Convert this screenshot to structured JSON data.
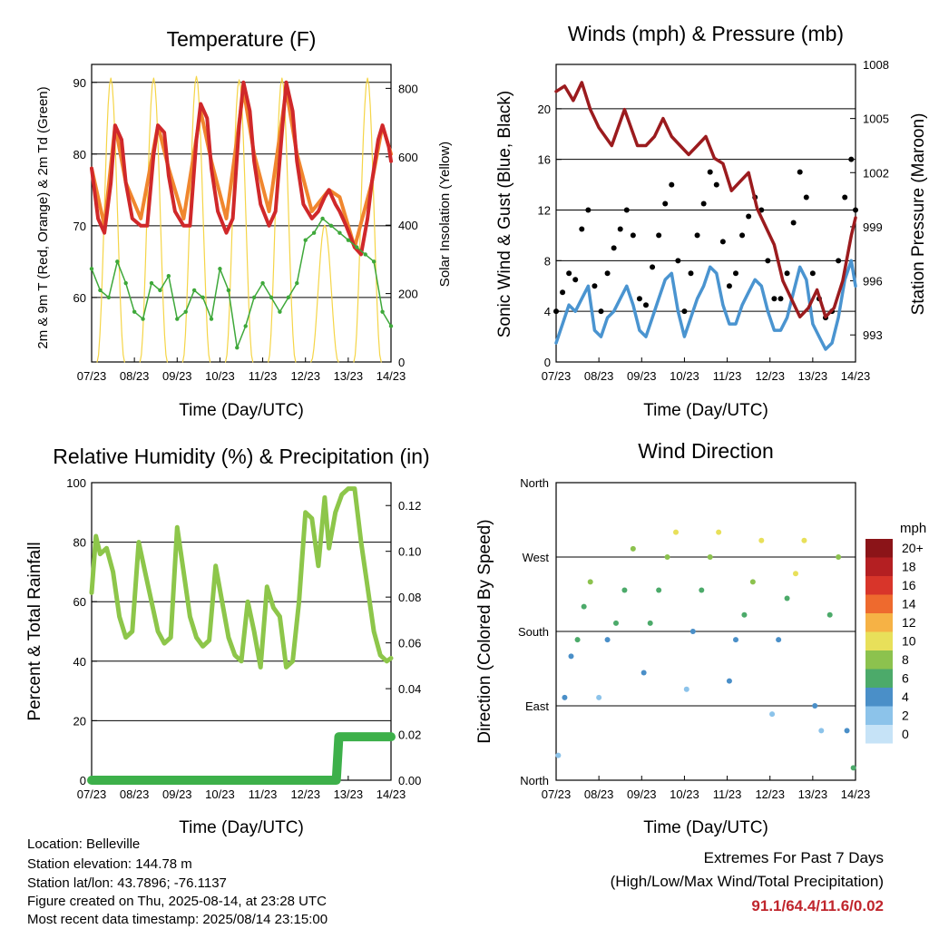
{
  "x_ticks": [
    "07/23",
    "08/23",
    "09/23",
    "10/23",
    "11/23",
    "12/23",
    "13/23",
    "14/23"
  ],
  "x_label": "Time (Day/UTC)",
  "temperature_panel": {
    "title": "Temperature (F)",
    "left_label": "2m & 9m T (Red, Orange) & 2m Td (Green)",
    "right_label": "Solar Insolation (Yellow)",
    "left_ticks": [
      "60",
      "70",
      "80",
      "90"
    ],
    "right_ticks": [
      "0",
      "200",
      "400",
      "600",
      "800"
    ]
  },
  "winds_panel": {
    "title": "Winds (mph) & Pressure (mb)",
    "left_label": "Sonic Wind & Gust (Blue, Black)",
    "right_label": "Station Pressure (Maroon)",
    "left_ticks": [
      "0",
      "4",
      "8",
      "12",
      "16",
      "20"
    ],
    "right_ticks": [
      "993",
      "996",
      "999",
      "1002",
      "1005",
      "1008"
    ]
  },
  "rh_panel": {
    "title": "Relative Humidity (%) & Precipitation (in)",
    "left_label": "Percent & Total Rainfall",
    "left_ticks": [
      "0",
      "20",
      "40",
      "60",
      "80",
      "100"
    ],
    "right_ticks": [
      "0.00",
      "0.02",
      "0.04",
      "0.06",
      "0.08",
      "0.10",
      "0.12"
    ]
  },
  "direction_panel": {
    "title": "Wind Direction",
    "left_label": "Direction (Colored By Speed)",
    "left_ticks": [
      "North",
      "East",
      "South",
      "West",
      "North"
    ],
    "legend_title": "mph",
    "legend_labels": [
      "0",
      "2",
      "4",
      "6",
      "8",
      "10",
      "12",
      "14",
      "16",
      "18",
      "20+"
    ],
    "legend_colors": [
      "#c6e3f7",
      "#8cc3ea",
      "#4a8fc8",
      "#4caa6a",
      "#8cc24e",
      "#e8e05a",
      "#f6b245",
      "#ee6a2e",
      "#d8352a",
      "#b41f22",
      "#8b1418"
    ]
  },
  "info": {
    "location": "Location: Belleville",
    "elevation": "Station elevation: 144.78 m",
    "latlon": "Station lat/lon: 43.7896; -76.1137",
    "created": "Figure created on Thu, 2025-08-14, at 23:28 UTC",
    "recent": "Most recent data timestamp: 2025/08/14 23:15:00"
  },
  "extremes": {
    "line1": "Extremes For Past 7 Days",
    "line2": "(High/Low/Max Wind/Total Precipitation)",
    "values": "91.1/64.4/11.6/0.02"
  },
  "chart_data": [
    {
      "type": "line",
      "title": "Temperature (F)",
      "xlabel": "Time (Day/UTC)",
      "ylabel": "2m & 9m T (Red, Orange) & 2m Td (Green)",
      "y2label": "Solar Insolation (Yellow)",
      "x_days": [
        7,
        14
      ],
      "ylim": [
        51,
        92.5
      ],
      "y2lim": [
        0,
        870
      ],
      "series": [
        {
          "name": "2m T",
          "color": "#d0282a",
          "x": [
            7.0,
            7.15,
            7.3,
            7.45,
            7.55,
            7.7,
            7.8,
            7.95,
            8.15,
            8.3,
            8.45,
            8.55,
            8.7,
            8.8,
            8.95,
            9.15,
            9.3,
            9.45,
            9.55,
            9.7,
            9.8,
            9.95,
            10.15,
            10.3,
            10.45,
            10.55,
            10.7,
            10.8,
            10.95,
            11.15,
            11.3,
            11.45,
            11.55,
            11.7,
            11.8,
            11.95,
            12.15,
            12.3,
            12.45,
            12.55,
            12.7,
            12.8,
            12.95,
            13.15,
            13.3,
            13.45,
            13.55,
            13.7,
            13.8,
            13.95,
            14.0
          ],
          "y": [
            78,
            71,
            69,
            76,
            84,
            82,
            76,
            71,
            70,
            70,
            80,
            84,
            83,
            77,
            72,
            70,
            70,
            82,
            87,
            85,
            78,
            72,
            69,
            71,
            84,
            90,
            86,
            79,
            73,
            70,
            72,
            83,
            90,
            86,
            79,
            73,
            71,
            72,
            74,
            75,
            73,
            72,
            70,
            67,
            66,
            71,
            76,
            82,
            84,
            81,
            79
          ]
        },
        {
          "name": "9m T",
          "color": "#f0862e",
          "x": [
            7.0,
            7.3,
            7.55,
            7.8,
            8.15,
            8.55,
            8.8,
            9.15,
            9.55,
            9.8,
            10.15,
            10.55,
            10.8,
            11.15,
            11.55,
            11.8,
            12.15,
            12.55,
            12.8,
            13.15,
            13.55,
            13.8,
            14.0
          ],
          "y": [
            78,
            70,
            84,
            76,
            71,
            84,
            78,
            71,
            86,
            79,
            71,
            89,
            80,
            72,
            89,
            80,
            72,
            75,
            74,
            67,
            76,
            84,
            80
          ]
        },
        {
          "name": "2m Td",
          "color": "#3ea83a",
          "x": [
            7.0,
            7.2,
            7.4,
            7.6,
            7.8,
            8.0,
            8.2,
            8.4,
            8.6,
            8.8,
            9.0,
            9.2,
            9.4,
            9.6,
            9.8,
            10.0,
            10.2,
            10.4,
            10.6,
            10.8,
            11.0,
            11.2,
            11.4,
            11.6,
            11.8,
            12.0,
            12.2,
            12.4,
            12.6,
            12.8,
            13.0,
            13.2,
            13.4,
            13.6,
            13.8,
            14.0
          ],
          "y": [
            64,
            61,
            60,
            65,
            62,
            58,
            57,
            62,
            61,
            63,
            57,
            58,
            61,
            60,
            57,
            64,
            61,
            53,
            56,
            60,
            62,
            60,
            58,
            60,
            62,
            68,
            69,
            71,
            70,
            69,
            68,
            67,
            66,
            65,
            58,
            56
          ]
        },
        {
          "name": "Solar Insolation",
          "color": "#f5d547",
          "axis": "right",
          "peaks_x": [
            7.45,
            8.45,
            9.45,
            10.45,
            11.45,
            12.45,
            13.45
          ],
          "peaks_y": [
            830,
            830,
            835,
            825,
            830,
            400,
            830
          ]
        }
      ]
    },
    {
      "type": "line",
      "title": "Winds (mph) & Pressure (mb)",
      "xlabel": "Time (Day/UTC)",
      "ylabel": "Sonic Wind & Gust (Blue, Black)",
      "y2label": "Station Pressure (Maroon)",
      "x_days": [
        7,
        14
      ],
      "ylim": [
        0,
        23.5
      ],
      "y2lim": [
        991.5,
        1008.0
      ],
      "series": [
        {
          "name": "Sonic Wind",
          "color": "#4a94d0",
          "x": [
            7.0,
            7.15,
            7.3,
            7.45,
            7.6,
            7.75,
            7.9,
            8.05,
            8.2,
            8.35,
            8.5,
            8.65,
            8.8,
            8.95,
            9.1,
            9.25,
            9.4,
            9.55,
            9.7,
            9.85,
            10.0,
            10.15,
            10.3,
            10.45,
            10.6,
            10.75,
            10.9,
            11.05,
            11.2,
            11.35,
            11.5,
            11.65,
            11.8,
            11.95,
            12.1,
            12.25,
            12.4,
            12.55,
            12.7,
            12.85,
            13.0,
            13.15,
            13.3,
            13.45,
            13.6,
            13.75,
            13.9,
            14.0
          ],
          "y": [
            1.5,
            3.0,
            4.5,
            4.0,
            5.0,
            6.0,
            2.5,
            2.0,
            3.5,
            4.0,
            5.0,
            6.0,
            4.5,
            2.5,
            2.0,
            3.5,
            5.0,
            6.5,
            7.0,
            4.0,
            2.0,
            3.5,
            5.0,
            6.0,
            7.5,
            7.0,
            4.5,
            3.0,
            3.0,
            4.5,
            5.5,
            6.5,
            6.0,
            4.0,
            2.5,
            2.5,
            3.5,
            5.5,
            7.5,
            6.5,
            3.0,
            2.0,
            1.0,
            1.5,
            3.5,
            6.5,
            8.0,
            6.0
          ]
        },
        {
          "name": "Gust",
          "color": "#000000",
          "x": [
            7.0,
            7.15,
            7.3,
            7.45,
            7.6,
            7.75,
            7.9,
            8.05,
            8.2,
            8.35,
            8.5,
            8.65,
            8.8,
            8.95,
            9.1,
            9.25,
            9.4,
            9.55,
            9.7,
            9.85,
            10.0,
            10.15,
            10.3,
            10.45,
            10.6,
            10.75,
            10.9,
            11.05,
            11.2,
            11.35,
            11.5,
            11.65,
            11.8,
            11.95,
            12.1,
            12.25,
            12.4,
            12.55,
            12.7,
            12.85,
            13.0,
            13.15,
            13.3,
            13.45,
            13.6,
            13.75,
            13.9,
            14.0
          ],
          "y": [
            4.0,
            5.5,
            7.0,
            6.5,
            10.5,
            12.0,
            6.0,
            4.0,
            7.0,
            9.0,
            10.5,
            12.0,
            10.0,
            5.0,
            4.5,
            7.5,
            10.0,
            12.5,
            14.0,
            8.0,
            4.0,
            7.0,
            10.0,
            12.5,
            15.0,
            14.0,
            9.5,
            6.0,
            7.0,
            10.0,
            11.5,
            13.0,
            12.0,
            8.0,
            5.0,
            5.0,
            7.0,
            11.0,
            15.0,
            13.0,
            7.0,
            5.0,
            3.5,
            4.0,
            8.0,
            13.0,
            16.0,
            12.0
          ]
        },
        {
          "name": "Station Pressure",
          "color": "#9b1b1e",
          "axis": "right",
          "x": [
            7.0,
            7.2,
            7.4,
            7.6,
            7.8,
            8.0,
            8.3,
            8.6,
            8.9,
            9.1,
            9.3,
            9.5,
            9.7,
            9.9,
            10.1,
            10.3,
            10.5,
            10.7,
            10.9,
            11.1,
            11.3,
            11.5,
            11.7,
            11.9,
            12.1,
            12.3,
            12.5,
            12.7,
            12.9,
            13.1,
            13.3,
            13.5,
            13.7,
            13.9,
            14.0
          ],
          "y": [
            1006.5,
            1006.8,
            1006.0,
            1007.0,
            1005.5,
            1004.5,
            1003.5,
            1005.5,
            1003.5,
            1003.5,
            1004.0,
            1005.0,
            1004.0,
            1003.5,
            1003.0,
            1003.5,
            1004.0,
            1002.8,
            1002.5,
            1001.0,
            1001.5,
            1002.0,
            1000.0,
            999.0,
            998.0,
            996.0,
            995.0,
            994.0,
            994.5,
            995.5,
            994.0,
            994.5,
            996.0,
            998.5,
            999.5
          ]
        }
      ]
    },
    {
      "type": "line",
      "title": "Relative Humidity (%) & Precipitation (in)",
      "xlabel": "Time (Day/UTC)",
      "ylabel": "Percent & Total Rainfall",
      "x_days": [
        7,
        14
      ],
      "ylim": [
        0,
        100
      ],
      "y2lim": [
        0,
        0.13
      ],
      "series": [
        {
          "name": "Relative Humidity",
          "color": "#8dc64a",
          "x": [
            7.0,
            7.1,
            7.2,
            7.35,
            7.5,
            7.65,
            7.8,
            7.95,
            8.1,
            8.25,
            8.4,
            8.55,
            8.7,
            8.85,
            9.0,
            9.15,
            9.3,
            9.45,
            9.6,
            9.75,
            9.9,
            10.05,
            10.2,
            10.35,
            10.5,
            10.65,
            10.8,
            10.95,
            11.1,
            11.25,
            11.4,
            11.55,
            11.7,
            11.85,
            12.0,
            12.15,
            12.3,
            12.45,
            12.55,
            12.7,
            12.85,
            13.0,
            13.15,
            13.3,
            13.45,
            13.6,
            13.75,
            13.9,
            14.0
          ],
          "y": [
            63,
            82,
            76,
            78,
            70,
            55,
            48,
            50,
            80,
            70,
            60,
            50,
            46,
            48,
            85,
            70,
            55,
            48,
            45,
            47,
            72,
            60,
            48,
            42,
            40,
            60,
            50,
            38,
            65,
            58,
            55,
            38,
            40,
            60,
            90,
            88,
            72,
            95,
            78,
            90,
            96,
            98,
            98,
            80,
            65,
            50,
            42,
            40,
            41
          ]
        },
        {
          "name": "Total Rainfall",
          "color": "#3db04a",
          "axis": "right",
          "x": [
            7.0,
            12.72,
            12.78,
            14.0
          ],
          "y": [
            0.0,
            0.0,
            0.019,
            0.019
          ]
        }
      ]
    },
    {
      "type": "scatter",
      "title": "Wind Direction",
      "xlabel": "Time (Day/UTC)",
      "ylabel": "Direction (Colored By Speed)",
      "x_days": [
        7,
        14
      ],
      "ylim": [
        0,
        360
      ],
      "x": [
        7.05,
        7.2,
        7.35,
        7.5,
        7.65,
        7.8,
        8.0,
        8.2,
        8.4,
        8.6,
        8.8,
        9.05,
        9.2,
        9.4,
        9.6,
        9.8,
        10.05,
        10.2,
        10.4,
        10.6,
        10.8,
        11.05,
        11.2,
        11.4,
        11.6,
        11.8,
        12.05,
        12.2,
        12.4,
        12.6,
        12.8,
        13.05,
        13.2,
        13.4,
        13.6,
        13.8,
        13.95
      ],
      "y": [
        30,
        100,
        150,
        170,
        210,
        240,
        100,
        170,
        190,
        230,
        280,
        130,
        190,
        230,
        270,
        300,
        110,
        180,
        230,
        270,
        300,
        120,
        170,
        200,
        240,
        290,
        80,
        170,
        220,
        250,
        290,
        90,
        60,
        200,
        270,
        60,
        15
      ],
      "speed": [
        2,
        3,
        4,
        5,
        6,
        7,
        2,
        4,
        5,
        6,
        7,
        3,
        5,
        6,
        8,
        9,
        2,
        4,
        6,
        8,
        9,
        3,
        4,
        6,
        8,
        9,
        2,
        4,
        6,
        9,
        10,
        3,
        2,
        6,
        8,
        4,
        6
      ]
    }
  ]
}
